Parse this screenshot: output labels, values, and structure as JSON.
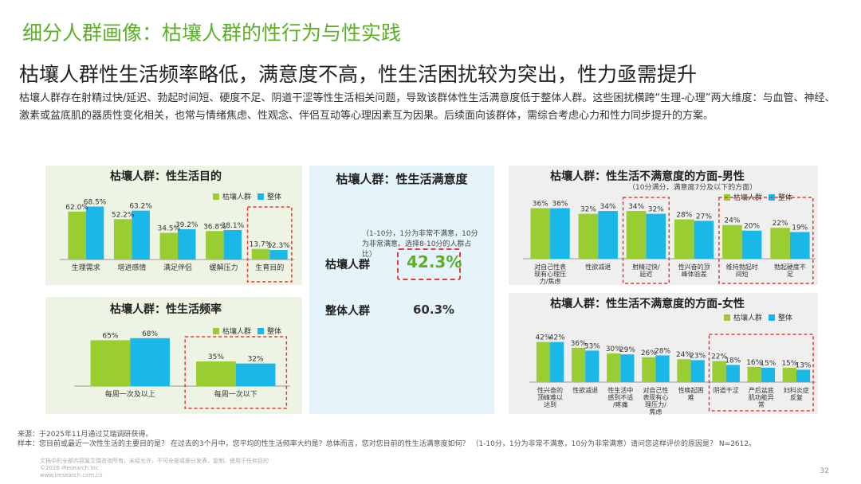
{
  "title": "细分人群画像：枯壤人群的性行为与性实践",
  "subtitle": "枯壤人群性生活频率略低，满意度不高，性生活困扰较为突出，性力亟需提升",
  "description": "枯壤人群存在射精过快/延迟、勃起时间短、硬度不足、阴道干涩等性生活相关问题，导致该群体性生活满意度低于整体人群。这些困扰横跨“生理-心理”两大维度：与血管、神经、激素或盆底肌的器质性变化相关，也常与情绪焦虑、性观念、伴侣互动等心理因素互为因果。后续面向该群体，需综合考虑心力和性力同步提升的方案。",
  "colors": {
    "series1": "#9acd32",
    "series2": "#1ab8e8",
    "accent": "#5bb026",
    "highlight": "#e53935"
  },
  "legend": {
    "s1": "枯壤人群",
    "s2": "整体"
  },
  "chart_data": [
    {
      "type": "bar",
      "title": "枯壤人群：性生活目的",
      "categories": [
        "生理需求",
        "增进感情",
        "满足伴侣",
        "缓解压力",
        "生育目的"
      ],
      "series": [
        {
          "name": "枯壤人群",
          "values": [
            62.0,
            52.2,
            34.5,
            36.8,
            13.7
          ],
          "labels": [
            "62.0%",
            "52.2%",
            "34.5%",
            "36.8%",
            "13.7%"
          ]
        },
        {
          "name": "整体",
          "values": [
            68.5,
            63.2,
            39.2,
            38.1,
            12.3
          ],
          "labels": [
            "68.5%",
            "63.2%",
            "39.2%",
            "38.1%",
            "12.3%"
          ]
        }
      ],
      "highlight_categories": [
        4
      ],
      "legend_position": "top-right"
    },
    {
      "type": "bar",
      "title": "枯壤人群：性生活频率",
      "categories": [
        "每周一次及以上",
        "每周一次以下"
      ],
      "series": [
        {
          "name": "枯壤人群",
          "values": [
            65,
            35
          ],
          "labels": [
            "65%",
            "35%"
          ]
        },
        {
          "name": "整体",
          "values": [
            68,
            32
          ],
          "labels": [
            "68%",
            "32%"
          ]
        }
      ],
      "highlight_categories": [
        1
      ],
      "legend_position": "top-right"
    },
    {
      "type": "table",
      "title": "枯壤人群：性生活满意度",
      "note": "（1-10分，1分为非常不满意，10分为非常满意。选择8-10分的人群占比）",
      "rows": [
        {
          "label": "枯壤人群",
          "value": "42.3%"
        },
        {
          "label": "整体人群",
          "value": "60.3%"
        }
      ]
    },
    {
      "type": "bar",
      "title": "枯壤人群：性生活不满意度的方面-男性",
      "subtitle": "（10分满分，满意度7分及以下的方面）",
      "categories": [
        "对自己性表现有心理压力/焦虑",
        "性欲减退",
        "射精过快/延迟",
        "性兴奋的顶峰体验差",
        "维持勃起时间短",
        "勃起硬度不足"
      ],
      "series": [
        {
          "name": "枯壤人群",
          "values": [
            36,
            32,
            34,
            28,
            24,
            22
          ],
          "labels": [
            "36%",
            "32%",
            "34%",
            "28%",
            "24%",
            "22%"
          ]
        },
        {
          "name": "整体",
          "values": [
            36,
            34,
            32,
            27,
            20,
            19
          ],
          "labels": [
            "36%",
            "34%",
            "32%",
            "27%",
            "20%",
            "19%"
          ]
        }
      ],
      "highlight_categories": [
        2,
        4,
        5
      ],
      "legend_position": "top-right"
    },
    {
      "type": "bar",
      "title": "枯壤人群：性生活不满意度的方面-女性",
      "categories": [
        "性兴奋的顶峰难以达到",
        "性欲减退",
        "性生活中感到不适/疼痛",
        "对自己性表现有心理压力/焦虑",
        "性唤起困难",
        "阴道干涩",
        "产后盆底肌功能异常",
        "妇科炎症反复"
      ],
      "series": [
        {
          "name": "枯壤人群",
          "values": [
            42,
            36,
            30,
            26,
            24,
            22,
            16,
            15
          ],
          "labels": [
            "42%",
            "36%",
            "30%",
            "26%",
            "24%",
            "22%",
            "16%",
            "15%"
          ]
        },
        {
          "name": "整体",
          "values": [
            42,
            33,
            29,
            28,
            23,
            18,
            15,
            13
          ],
          "labels": [
            "42%",
            "33%",
            "29%",
            "28%",
            "23%",
            "18%",
            "15%",
            "13%"
          ]
        }
      ],
      "highlight_categories": [
        5,
        6,
        7
      ],
      "legend_position": "top-right"
    }
  ],
  "source": {
    "line1": "来源：于2025年11月通过艾瑞调研获得。",
    "line2": "样本：您目前或最近一次性生活的主要目的是？ 在过去的3个月中，您平均的性生活频率大约是？总体而言，您对您目前的性生活满意度如何？ （1-10分，1分为非常不满意，10分为非常满意）请问您这样评价的原因是？ N=2612。"
  },
  "footer": {
    "line1": "文档中的全部内容属艾瑞咨询所有，未经允许，不可全部或部分发表、复制、使用于任何目的",
    "line2": "©2026 iResearch Inc",
    "line3": "www.iresearch.com.cn"
  },
  "page_number": "32"
}
